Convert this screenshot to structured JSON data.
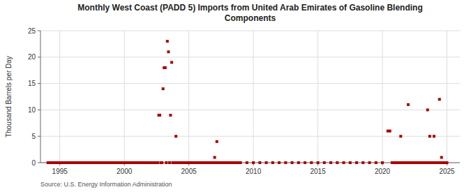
{
  "chart_data": {
    "type": "scatter",
    "title": "Monthly West Coast (PADD 5) Imports from United Arab Emirates of Gasoline Blending\nComponents",
    "y_label": "Thousand Barrels per Day",
    "annotations": [
      "Source: U.S. Energy Information Administration"
    ],
    "color": "#aa0000",
    "marker": "square",
    "grid": true,
    "xlim": [
      1993.5,
      2026
    ],
    "ylim": [
      0,
      25
    ],
    "xticks": [
      1995,
      2000,
      2005,
      2010,
      2015,
      2020,
      2025
    ],
    "yticks": [
      0,
      5,
      10,
      15,
      20,
      25
    ],
    "x": [
      1994.08,
      1994.17,
      1994.25,
      1994.33,
      1994.42,
      1994.5,
      1994.58,
      1994.67,
      1994.75,
      1994.83,
      1994.92,
      1995.0,
      1995.08,
      1995.17,
      1995.25,
      1995.33,
      1995.42,
      1995.5,
      1995.58,
      1995.67,
      1995.75,
      1995.83,
      1995.92,
      1996.0,
      1996.08,
      1996.17,
      1996.25,
      1996.33,
      1996.42,
      1996.5,
      1996.58,
      1996.67,
      1996.75,
      1996.83,
      1996.92,
      1997.0,
      1997.08,
      1997.17,
      1997.25,
      1997.33,
      1997.42,
      1997.5,
      1997.58,
      1997.67,
      1997.75,
      1997.83,
      1997.92,
      1998.0,
      1998.08,
      1998.17,
      1998.25,
      1998.33,
      1998.42,
      1998.5,
      1998.58,
      1998.67,
      1998.75,
      1998.83,
      1998.92,
      1999.0,
      1999.08,
      1999.17,
      1999.25,
      1999.33,
      1999.42,
      1999.5,
      1999.58,
      1999.67,
      1999.75,
      1999.83,
      1999.92,
      2000.0,
      2000.08,
      2000.17,
      2000.25,
      2000.33,
      2000.42,
      2000.5,
      2000.58,
      2000.67,
      2000.75,
      2000.83,
      2000.92,
      2001.0,
      2001.08,
      2001.17,
      2001.25,
      2001.33,
      2001.42,
      2001.5,
      2001.58,
      2001.67,
      2001.75,
      2001.83,
      2001.92,
      2002.0,
      2002.08,
      2002.17,
      2002.25,
      2002.33,
      2002.42,
      2002.5,
      2002.58,
      2002.67,
      2002.75,
      2002.83,
      2002.92,
      2003.0,
      2003.08,
      2003.17,
      2003.25,
      2003.33,
      2003.42,
      2003.5,
      2003.58,
      2003.67,
      2003.75,
      2003.83,
      2003.92,
      2004.0,
      2004.08,
      2004.17,
      2004.25,
      2004.33,
      2004.42,
      2004.5,
      2004.58,
      2004.67,
      2004.75,
      2004.83,
      2004.92,
      2005.0,
      2005.08,
      2005.17,
      2005.25,
      2005.33,
      2005.42,
      2005.5,
      2005.58,
      2005.67,
      2005.75,
      2005.83,
      2005.92,
      2006.0,
      2006.08,
      2006.17,
      2006.25,
      2006.33,
      2006.42,
      2006.5,
      2006.58,
      2006.67,
      2006.75,
      2006.83,
      2006.92,
      2007.0,
      2007.08,
      2007.17,
      2007.25,
      2007.33,
      2007.42,
      2007.5,
      2007.58,
      2007.67,
      2007.75,
      2007.83,
      2007.92,
      2008.0,
      2008.08,
      2008.17,
      2008.25,
      2008.33,
      2008.42,
      2008.5,
      2008.58,
      2008.67,
      2008.75,
      2008.83,
      2008.92,
      2009.0,
      2009.5,
      2010.0,
      2010.5,
      2011.0,
      2011.5,
      2012.0,
      2012.5,
      2013.0,
      2013.5,
      2014.0,
      2014.5,
      2015.0,
      2015.5,
      2016.0,
      2016.5,
      2017.0,
      2017.5,
      2018.0,
      2018.5,
      2019.0,
      2019.5,
      2020.0,
      2020.42,
      2020.58,
      2020.75,
      2020.92,
      2021.0,
      2021.08,
      2021.17,
      2021.25,
      2021.33,
      2021.42,
      2021.5,
      2021.58,
      2021.67,
      2021.75,
      2021.83,
      2021.92,
      2022.0,
      2022.08,
      2022.17,
      2022.25,
      2022.33,
      2022.42,
      2022.5,
      2022.58,
      2022.67,
      2022.75,
      2022.83,
      2022.92,
      2023.0,
      2023.08,
      2023.17,
      2023.25,
      2023.33,
      2023.42,
      2023.5,
      2023.58,
      2023.67,
      2023.75,
      2023.83,
      2023.92,
      2024.0,
      2024.08,
      2024.17,
      2024.25,
      2024.33,
      2024.42,
      2024.5,
      2024.58,
      2024.67,
      2024.75,
      2024.83,
      2024.92,
      2025.0
    ],
    "values": [
      0,
      0,
      0,
      0,
      0,
      0,
      0,
      0,
      0,
      0,
      0,
      0,
      0,
      0,
      0,
      0,
      0,
      0,
      0,
      0,
      0,
      0,
      0,
      0,
      0,
      0,
      0,
      0,
      0,
      0,
      0,
      0,
      0,
      0,
      0,
      0,
      0,
      0,
      0,
      0,
      0,
      0,
      0,
      0,
      0,
      0,
      0,
      0,
      0,
      0,
      0,
      0,
      0,
      0,
      0,
      0,
      0,
      0,
      0,
      0,
      0,
      0,
      0,
      0,
      0,
      0,
      0,
      0,
      0,
      0,
      0,
      0,
      0,
      0,
      0,
      0,
      0,
      0,
      0,
      0,
      0,
      0,
      0,
      0,
      0,
      0,
      0,
      0,
      0,
      0,
      0,
      0,
      0,
      0,
      0,
      0,
      0,
      0,
      0,
      0,
      0,
      0,
      0,
      9.0,
      9.0,
      0,
      0,
      14.0,
      18.0,
      18.0,
      0,
      23.0,
      21.0,
      0,
      9.0,
      19.0,
      0,
      0,
      0,
      5.0,
      0,
      0,
      0,
      0,
      0,
      0,
      0,
      0,
      0,
      0,
      0,
      0,
      0,
      0,
      0,
      0,
      0,
      0,
      0,
      0,
      0,
      0,
      0,
      0,
      0,
      0,
      0,
      0,
      0,
      0,
      0,
      0,
      0,
      0,
      0,
      1.0,
      0,
      4.0,
      0,
      0,
      0,
      0,
      0,
      0,
      0,
      0,
      0,
      0,
      0,
      0,
      0,
      0,
      0,
      0,
      0,
      0,
      0,
      0,
      0,
      0,
      0,
      0,
      0,
      0,
      0,
      0,
      0,
      0,
      0,
      0,
      0,
      0,
      0,
      0,
      0,
      0,
      0,
      0,
      0,
      0,
      0,
      0,
      6.0,
      6.0,
      0,
      0,
      0,
      0,
      0,
      0,
      0,
      5.0,
      0,
      0,
      0,
      0,
      0,
      0,
      11.0,
      0,
      0,
      0,
      0,
      0,
      0,
      0,
      0,
      0,
      0,
      0,
      0,
      0,
      0,
      0,
      0,
      0,
      10.0,
      0,
      5.0,
      0,
      0,
      0,
      5.0,
      0,
      0,
      0,
      0,
      12.0,
      0,
      1.0,
      0,
      0,
      0,
      0,
      0
    ]
  }
}
